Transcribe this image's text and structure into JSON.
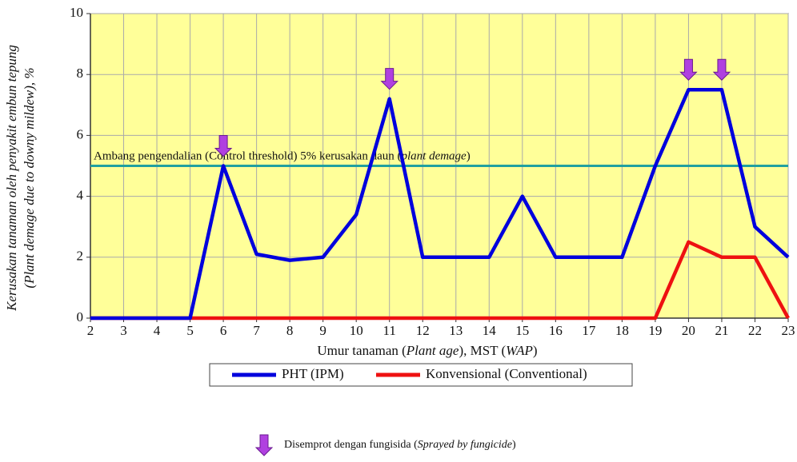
{
  "chart_data": {
    "type": "line",
    "y_label_lines": [
      "Kerusakan tanaman oleh penyakit embun tepung",
      "(Plant demage due to downy mildew), %"
    ],
    "x_label_parts": [
      "Umur tanaman (",
      "Plant age",
      "), MST (",
      "WAP",
      ")"
    ],
    "x": [
      2,
      3,
      4,
      5,
      6,
      7,
      8,
      9,
      10,
      11,
      12,
      13,
      14,
      15,
      16,
      17,
      18,
      19,
      20,
      21,
      22,
      23
    ],
    "xlim": [
      2,
      23
    ],
    "xticks": [
      2,
      3,
      4,
      5,
      6,
      7,
      8,
      9,
      10,
      11,
      12,
      13,
      14,
      15,
      16,
      17,
      18,
      19,
      20,
      21,
      22,
      23
    ],
    "ylim": [
      0,
      10
    ],
    "yticks": [
      0,
      2,
      4,
      6,
      8,
      10
    ],
    "grid": true,
    "background": "#ffff99",
    "series": [
      {
        "name": "PHT (IPM)",
        "color": "#0000dd",
        "values": [
          0,
          0,
          0,
          0,
          5,
          2.1,
          1.9,
          2,
          3.4,
          7.2,
          2,
          2,
          2,
          4,
          2,
          2,
          2,
          5,
          7.5,
          7.5,
          3,
          2
        ]
      },
      {
        "name": "Konvensional (Conventional)",
        "color": "#ee1111",
        "values": [
          0,
          0,
          0,
          0,
          0,
          0,
          0,
          0,
          0,
          0,
          0,
          0,
          0,
          0,
          0,
          0,
          0,
          0,
          2.5,
          2,
          2,
          0
        ]
      }
    ],
    "threshold": {
      "value": 5,
      "color": "#20a0a0",
      "label_parts": [
        "Ambang pengendalian (Control threshold) 5% kerusakan daun (",
        "plant demage",
        ")"
      ]
    },
    "sprayed_at": [
      6,
      11,
      20,
      21
    ],
    "spray_color": "#b040e0",
    "spray_label_parts": [
      "Disemprot dengan fungisida (",
      "Sprayed by fungicide",
      ")"
    ]
  }
}
